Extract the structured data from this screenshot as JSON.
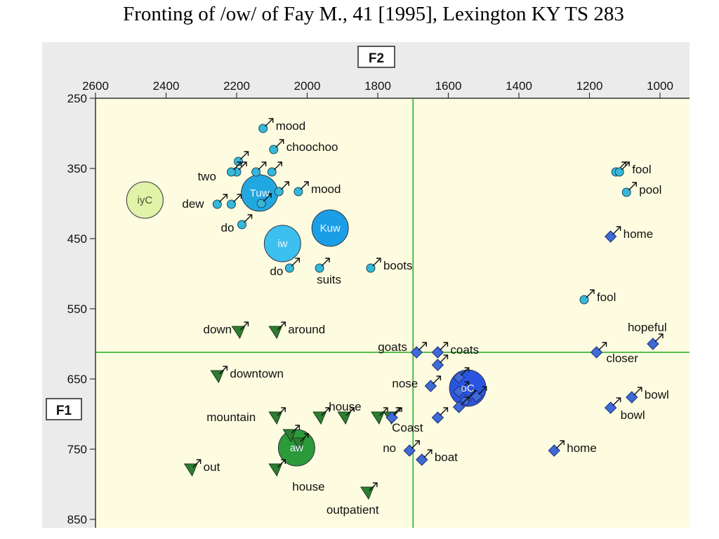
{
  "chart_data": {
    "type": "scatter",
    "title": "Fronting of /ow/ of Fay M., 41 [1995], Lexington KY TS 283",
    "x_axis_label": "F2",
    "y_axis_label": "F1",
    "x_axis_reversed": true,
    "y_axis_reversed": true,
    "xlim": [
      2600,
      1000
    ],
    "ylim": [
      250,
      850
    ],
    "x_ticks": [
      "2600",
      "2400",
      "2200",
      "2000",
      "1800",
      "1600",
      "1400",
      "1200",
      "1000"
    ],
    "y_ticks": [
      "250",
      "350",
      "450",
      "550",
      "650",
      "750",
      "850"
    ],
    "grid": false,
    "reference_lines": {
      "f2": 1700,
      "f1": 612
    },
    "colors": {
      "background": "#fdfce0",
      "circle": "#38b8d8",
      "triangle": "#2e7d32",
      "diamond": "#3f6ad8",
      "ref_line": "#22aa22"
    },
    "means": [
      {
        "label": "iyC",
        "f2": 2460,
        "f1": 395,
        "color": "#dff4a8"
      },
      {
        "label": "Tuw",
        "f2": 2135,
        "f1": 385,
        "color": "#22a8e0"
      },
      {
        "label": "Kuw",
        "f2": 1935,
        "f1": 435,
        "color": "#1a9fe6"
      },
      {
        "label": "iw",
        "f2": 2070,
        "f1": 457,
        "color": "#3cc0f0"
      },
      {
        "label": "aw",
        "f2": 2030,
        "f1": 748,
        "color": "#2a9a3a"
      },
      {
        "label": "oC",
        "f2": 1545,
        "f1": 663,
        "color": "#2a55e0"
      }
    ],
    "series": [
      {
        "name": "",
        "shape": "circle",
        "points": [
          {
            "f2": 2125,
            "f1": 293,
            "label": "mood"
          },
          {
            "f2": 2095,
            "f1": 323,
            "label": "choochoo"
          },
          {
            "f2": 2195,
            "f1": 340,
            "label": ""
          },
          {
            "f2": 2200,
            "f1": 355,
            "label": ""
          },
          {
            "f2": 2215,
            "f1": 355,
            "label": "two"
          },
          {
            "f2": 2145,
            "f1": 355,
            "label": ""
          },
          {
            "f2": 2100,
            "f1": 355,
            "label": ""
          },
          {
            "f2": 2255,
            "f1": 401,
            "label": "dew"
          },
          {
            "f2": 2215,
            "f1": 401,
            "label": ""
          },
          {
            "f2": 2080,
            "f1": 383,
            "label": ""
          },
          {
            "f2": 2025,
            "f1": 383,
            "label": "mood"
          },
          {
            "f2": 2130,
            "f1": 400,
            "label": ""
          },
          {
            "f2": 2185,
            "f1": 430,
            "label": "do"
          },
          {
            "f2": 2050,
            "f1": 492,
            "label": "do"
          },
          {
            "f2": 1965,
            "f1": 492,
            "label": "suits"
          },
          {
            "f2": 1820,
            "f1": 492,
            "label": "boots"
          },
          {
            "f2": 1125,
            "f1": 355,
            "label": ""
          },
          {
            "f2": 1115,
            "f1": 355,
            "label": "fool"
          },
          {
            "f2": 1095,
            "f1": 384,
            "label": "pool"
          },
          {
            "f2": 1215,
            "f1": 537,
            "label": "fool"
          }
        ]
      },
      {
        "name": "",
        "shape": "triangle",
        "points": [
          {
            "f2": 2195,
            "f1": 583,
            "label": "down"
          },
          {
            "f2": 2090,
            "f1": 583,
            "label": "around"
          },
          {
            "f2": 2255,
            "f1": 646,
            "label": "downtown"
          },
          {
            "f2": 2090,
            "f1": 705,
            "label": "mountain"
          },
          {
            "f2": 2050,
            "f1": 730,
            "label": ""
          },
          {
            "f2": 2025,
            "f1": 742,
            "label": ""
          },
          {
            "f2": 1965,
            "f1": 705,
            "label": ""
          },
          {
            "f2": 1895,
            "f1": 705,
            "label": "house"
          },
          {
            "f2": 1800,
            "f1": 705,
            "label": ""
          },
          {
            "f2": 1765,
            "f1": 705,
            "label": ""
          },
          {
            "f2": 2330,
            "f1": 779,
            "label": "out"
          },
          {
            "f2": 2090,
            "f1": 779,
            "label": "house"
          },
          {
            "f2": 1830,
            "f1": 812,
            "label": "outpatient"
          }
        ]
      },
      {
        "name": "",
        "shape": "diamond",
        "points": [
          {
            "f2": 1690,
            "f1": 612,
            "label": "goats"
          },
          {
            "f2": 1630,
            "f1": 612,
            "label": "coats"
          },
          {
            "f2": 1630,
            "f1": 630,
            "label": ""
          },
          {
            "f2": 1650,
            "f1": 660,
            "label": "nose"
          },
          {
            "f2": 1570,
            "f1": 648,
            "label": ""
          },
          {
            "f2": 1570,
            "f1": 668,
            "label": ""
          },
          {
            "f2": 1550,
            "f1": 680,
            "label": ""
          },
          {
            "f2": 1520,
            "f1": 675,
            "label": ""
          },
          {
            "f2": 1570,
            "f1": 690,
            "label": ""
          },
          {
            "f2": 1630,
            "f1": 705,
            "label": ""
          },
          {
            "f2": 1760,
            "f1": 705,
            "label": "Coast"
          },
          {
            "f2": 1710,
            "f1": 752,
            "label": "no"
          },
          {
            "f2": 1675,
            "f1": 765,
            "label": "boat"
          },
          {
            "f2": 1140,
            "f1": 447,
            "label": "home"
          },
          {
            "f2": 1180,
            "f1": 612,
            "label": "closer"
          },
          {
            "f2": 1020,
            "f1": 600,
            "label": "hopeful"
          },
          {
            "f2": 1140,
            "f1": 691,
            "label": "bowl"
          },
          {
            "f2": 1080,
            "f1": 676,
            "label": "bowl"
          },
          {
            "f2": 1300,
            "f1": 752,
            "label": "home"
          }
        ]
      }
    ]
  }
}
